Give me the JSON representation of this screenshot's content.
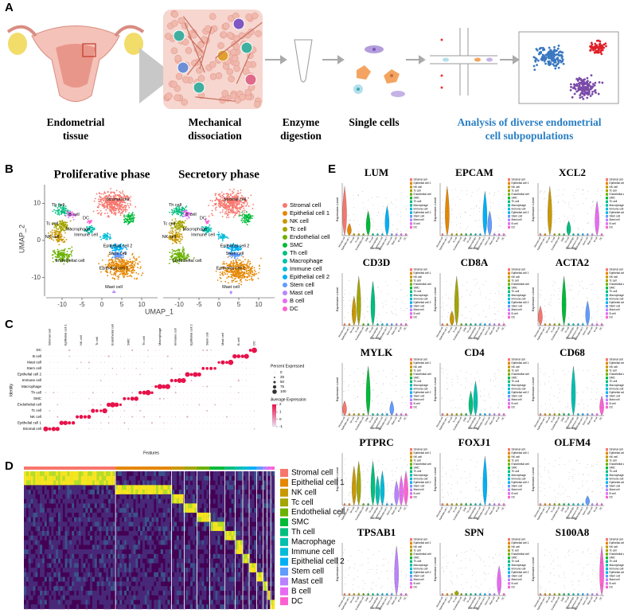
{
  "panel_a": {
    "letter": "A",
    "steps": [
      {
        "lines": [
          "Endometrial",
          "tissue"
        ]
      },
      {
        "lines": [
          "Mechanical",
          "dissociation"
        ]
      },
      {
        "lines": [
          "Enzyme",
          "digestion"
        ]
      },
      {
        "lines": [
          "Single cells"
        ]
      },
      {
        "lines": [
          "Analysis of diverse endometrial",
          "cell  subpopulations"
        ]
      }
    ]
  },
  "cell_types": [
    "Stromal cell",
    "Epithelial cell 1",
    "NK cell",
    "Tc cell",
    "Endothelial cell",
    "SMC",
    "Th cell",
    "Macrophage",
    "Immune cell",
    "Epithelial cell 2",
    "Stem cell",
    "Mast cell",
    "B cell",
    "DC"
  ],
  "panel_b": {
    "letter": "B",
    "titles": [
      "Proliferative phase",
      "Secretory phase"
    ],
    "x_label": "UMAP_1",
    "y_label": "UMAP_2",
    "xticks": [
      -10,
      -5,
      0,
      5,
      10
    ],
    "yticks": [
      10,
      0,
      -10
    ],
    "xlim": [
      -14,
      14
    ],
    "ylim": [
      -15,
      15
    ],
    "cluster_labels": [
      [
        "Stromal cell",
        "Th cell",
        "B cell",
        "Tc cell",
        "NK cell",
        "DC",
        "Macrophage",
        "Immune cell",
        "Epithelial cell 2",
        "Stem cell",
        "Endothelial cell",
        "Epithelial cell 1",
        "Mast cell"
      ],
      [
        "Stromal cell",
        "Th cell",
        "B cell",
        "Tc cell",
        "NK cell",
        "DC",
        "Macrophage",
        "Immune cell",
        "Epithelial cell 2",
        "Stem cell",
        "Endothelial cell",
        "Epithelial cell 1",
        "Mast cell"
      ]
    ]
  },
  "panel_c": {
    "letter": "C",
    "y_label": "Identity",
    "x_label": "Features",
    "size_legend_title": "Percent Expressed",
    "size_ticks": [
      0,
      25,
      50,
      75,
      100
    ],
    "color_legend_title": "Average Expression",
    "color_ticks": [
      2,
      1,
      0,
      -1
    ]
  },
  "panel_d": {
    "letter": "D"
  },
  "panel_e": {
    "letter": "E",
    "genes": [
      "LUM",
      "EPCAM",
      "XCL2",
      "CD3D",
      "CD8A",
      "ACTA2",
      "MYLK",
      "CD4",
      "CD68",
      "PTPRC",
      "FOXJ1",
      "OLFM4",
      "TPSAB1",
      "SPN",
      "S100A8"
    ],
    "y_label": "Expression Level",
    "x_label": "Identity"
  }
}
